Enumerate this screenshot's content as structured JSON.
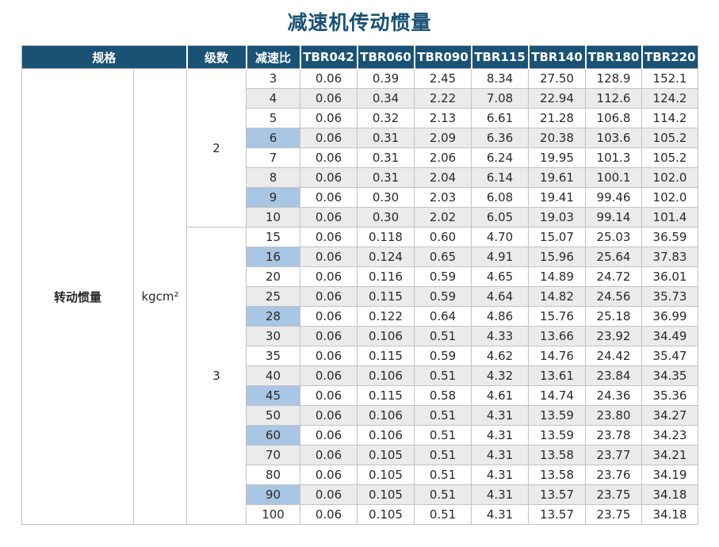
{
  "title": "减速机传动惯量",
  "colors": {
    "title": "#1a5276",
    "header_bg": "#1a5276",
    "header_text": "#ffffff",
    "row_alt_bg": "#ebebeb",
    "highlight_bg": "#a9c6e5",
    "highlight_border": "#7fa7cf",
    "grid_border": "#c3c3c3"
  },
  "table": {
    "headers": {
      "spec": "规格",
      "stages": "级数",
      "ratio": "减速比",
      "models": [
        "TBR042",
        "TBR060",
        "TBR090",
        "TBR115",
        "TBR140",
        "TBR180",
        "TBR220"
      ]
    },
    "row_label": "转动惯量",
    "unit": "kgcm²",
    "groups": [
      {
        "stage": "2",
        "rows": [
          {
            "ratio": "3",
            "highlight": false,
            "values": [
              "0.06",
              "0.39",
              "2.45",
              "8.34",
              "27.50",
              "128.9",
              "152.1"
            ]
          },
          {
            "ratio": "4",
            "highlight": false,
            "values": [
              "0.06",
              "0.34",
              "2.22",
              "7.08",
              "22.94",
              "112.6",
              "124.2"
            ]
          },
          {
            "ratio": "5",
            "highlight": false,
            "values": [
              "0.06",
              "0.32",
              "2.13",
              "6.61",
              "21.28",
              "106.8",
              "114.2"
            ]
          },
          {
            "ratio": "6",
            "highlight": true,
            "values": [
              "0.06",
              "0.31",
              "2.09",
              "6.36",
              "20.38",
              "103.6",
              "105.2"
            ]
          },
          {
            "ratio": "7",
            "highlight": false,
            "values": [
              "0.06",
              "0.31",
              "2.06",
              "6.24",
              "19.95",
              "101.3",
              "105.2"
            ]
          },
          {
            "ratio": "8",
            "highlight": false,
            "values": [
              "0.06",
              "0.31",
              "2.04",
              "6.14",
              "19.61",
              "100.1",
              "102.0"
            ]
          },
          {
            "ratio": "9",
            "highlight": true,
            "values": [
              "0.06",
              "0.30",
              "2.03",
              "6.08",
              "19.41",
              "99.46",
              "102.0"
            ]
          },
          {
            "ratio": "10",
            "highlight": false,
            "values": [
              "0.06",
              "0.30",
              "2.02",
              "6.05",
              "19.03",
              "99.14",
              "101.4"
            ]
          }
        ]
      },
      {
        "stage": "3",
        "rows": [
          {
            "ratio": "15",
            "highlight": false,
            "values": [
              "0.06",
              "0.118",
              "0.60",
              "4.70",
              "15.07",
              "25.03",
              "36.59"
            ]
          },
          {
            "ratio": "16",
            "highlight": true,
            "values": [
              "0.06",
              "0.124",
              "0.65",
              "4.91",
              "15.96",
              "25.64",
              "37.83"
            ]
          },
          {
            "ratio": "20",
            "highlight": false,
            "values": [
              "0.06",
              "0.116",
              "0.59",
              "4.65",
              "14.89",
              "24.72",
              "36.01"
            ]
          },
          {
            "ratio": "25",
            "highlight": false,
            "values": [
              "0.06",
              "0.115",
              "0.59",
              "4.64",
              "14.82",
              "24.56",
              "35.73"
            ]
          },
          {
            "ratio": "28",
            "highlight": true,
            "values": [
              "0.06",
              "0.122",
              "0.64",
              "4.86",
              "15.76",
              "25.18",
              "36.99"
            ]
          },
          {
            "ratio": "30",
            "highlight": false,
            "values": [
              "0.06",
              "0.106",
              "0.51",
              "4.33",
              "13.66",
              "23.92",
              "34.49"
            ]
          },
          {
            "ratio": "35",
            "highlight": false,
            "values": [
              "0.06",
              "0.115",
              "0.59",
              "4.62",
              "14.76",
              "24.42",
              "35.47"
            ]
          },
          {
            "ratio": "40",
            "highlight": false,
            "values": [
              "0.06",
              "0.106",
              "0.51",
              "4.32",
              "13.61",
              "23.84",
              "34.35"
            ]
          },
          {
            "ratio": "45",
            "highlight": true,
            "values": [
              "0.06",
              "0.115",
              "0.58",
              "4.61",
              "14.74",
              "24.36",
              "35.36"
            ]
          },
          {
            "ratio": "50",
            "highlight": false,
            "values": [
              "0.06",
              "0.106",
              "0.51",
              "4.31",
              "13.59",
              "23.80",
              "34.27"
            ]
          },
          {
            "ratio": "60",
            "highlight": true,
            "values": [
              "0.06",
              "0.106",
              "0.51",
              "4.31",
              "13.59",
              "23.78",
              "34.23"
            ]
          },
          {
            "ratio": "70",
            "highlight": false,
            "values": [
              "0.06",
              "0.105",
              "0.51",
              "4.31",
              "13.58",
              "23.77",
              "34.21"
            ]
          },
          {
            "ratio": "80",
            "highlight": false,
            "values": [
              "0.06",
              "0.105",
              "0.51",
              "4.31",
              "13.58",
              "23.76",
              "34.19"
            ]
          },
          {
            "ratio": "90",
            "highlight": true,
            "values": [
              "0.06",
              "0.105",
              "0.51",
              "4.31",
              "13.57",
              "23.75",
              "34.18"
            ]
          },
          {
            "ratio": "100",
            "highlight": false,
            "values": [
              "0.06",
              "0.105",
              "0.51",
              "4.31",
              "13.57",
              "23.75",
              "34.18"
            ]
          }
        ]
      }
    ]
  }
}
